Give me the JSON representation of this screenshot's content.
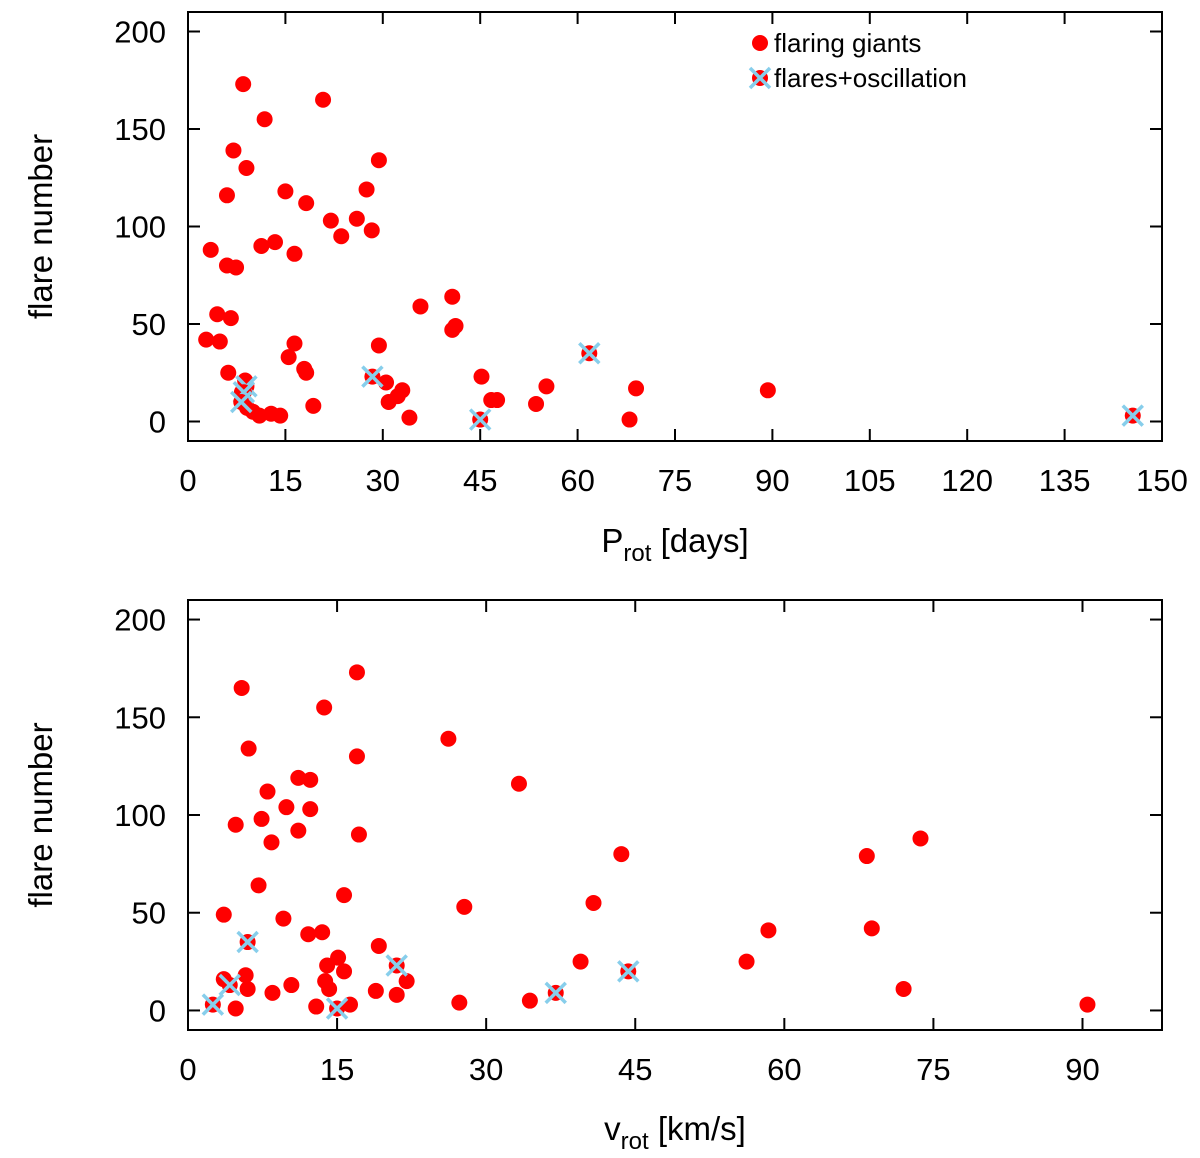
{
  "colors": {
    "marker": "#ff0000",
    "oscillation_marker": "#87ceeb",
    "axis": "#000000"
  },
  "chart_data": [
    {
      "type": "scatter",
      "xlabel": {
        "main": "P",
        "sub": "rot",
        "rest": " [days]"
      },
      "ylabel": "flare number",
      "xlim": [
        0,
        150
      ],
      "ylim": [
        -10,
        210
      ],
      "xticks": [
        0,
        15,
        30,
        45,
        60,
        75,
        90,
        105,
        120,
        135,
        150
      ],
      "yticks": [
        0,
        50,
        100,
        150,
        200
      ],
      "grid": false,
      "legend": {
        "placement": "top-right",
        "entries": [
          "flaring giants",
          "flares+oscillation"
        ]
      },
      "series": [
        {
          "name": "flaring giants",
          "marker": "filled-circle",
          "points": [
            [
              8.5,
              173
            ],
            [
              20.8,
              165
            ],
            [
              11.8,
              155
            ],
            [
              7.0,
              139
            ],
            [
              29.4,
              134
            ],
            [
              9.0,
              130
            ],
            [
              27.5,
              119
            ],
            [
              15.0,
              118
            ],
            [
              6.0,
              116
            ],
            [
              18.2,
              112
            ],
            [
              26.0,
              104
            ],
            [
              22.0,
              103
            ],
            [
              28.3,
              98
            ],
            [
              23.6,
              95
            ],
            [
              13.4,
              92
            ],
            [
              11.3,
              90
            ],
            [
              3.5,
              88
            ],
            [
              16.4,
              86
            ],
            [
              6.0,
              80
            ],
            [
              7.4,
              79
            ],
            [
              40.7,
              64
            ],
            [
              35.8,
              59
            ],
            [
              4.5,
              55
            ],
            [
              6.6,
              53
            ],
            [
              41.2,
              49
            ],
            [
              40.7,
              47
            ],
            [
              2.8,
              42
            ],
            [
              4.9,
              41
            ],
            [
              16.4,
              40
            ],
            [
              29.4,
              39
            ],
            [
              15.5,
              33
            ],
            [
              17.9,
              27
            ],
            [
              18.2,
              25
            ],
            [
              6.2,
              25
            ],
            [
              45.2,
              23
            ],
            [
              30.5,
              20
            ],
            [
              8.8,
              21
            ],
            [
              55.2,
              18
            ],
            [
              69.0,
              17
            ],
            [
              89.3,
              16
            ],
            [
              33.0,
              16
            ],
            [
              8.3,
              15
            ],
            [
              32.3,
              13
            ],
            [
              46.7,
              11
            ],
            [
              47.6,
              11
            ],
            [
              30.9,
              10
            ],
            [
              53.6,
              9
            ],
            [
              19.3,
              8
            ],
            [
              9.1,
              7
            ],
            [
              10.0,
              5
            ],
            [
              12.8,
              4
            ],
            [
              11.0,
              3
            ],
            [
              14.2,
              3
            ],
            [
              34.1,
              2
            ],
            [
              68.0,
              1
            ]
          ]
        },
        {
          "name": "flares+oscillation",
          "marker": "filled-circle-with-cross",
          "points": [
            [
              61.8,
              35
            ],
            [
              28.4,
              23
            ],
            [
              9.0,
              18
            ],
            [
              8.6,
              15
            ],
            [
              8.2,
              10
            ],
            [
              45.0,
              1
            ],
            [
              145.5,
              3
            ]
          ]
        }
      ]
    },
    {
      "type": "scatter",
      "xlabel": {
        "main": "v",
        "sub": "rot",
        "rest": " [km/s]"
      },
      "ylabel": "flare number",
      "xlim": [
        0,
        98
      ],
      "ylim": [
        -10,
        210
      ],
      "xticks": [
        0,
        15,
        30,
        45,
        60,
        75,
        90
      ],
      "yticks": [
        0,
        50,
        100,
        150,
        200
      ],
      "grid": false,
      "legend": null,
      "series": [
        {
          "name": "flaring giants",
          "marker": "filled-circle",
          "points": [
            [
              17.0,
              173
            ],
            [
              5.4,
              165
            ],
            [
              13.7,
              155
            ],
            [
              26.2,
              139
            ],
            [
              6.1,
              134
            ],
            [
              17.0,
              130
            ],
            [
              11.1,
              119
            ],
            [
              12.3,
              118
            ],
            [
              33.3,
              116
            ],
            [
              8.0,
              112
            ],
            [
              9.9,
              104
            ],
            [
              12.3,
              103
            ],
            [
              7.4,
              98
            ],
            [
              4.8,
              95
            ],
            [
              11.1,
              92
            ],
            [
              17.2,
              90
            ],
            [
              73.7,
              88
            ],
            [
              8.4,
              86
            ],
            [
              43.6,
              80
            ],
            [
              68.3,
              79
            ],
            [
              7.1,
              64
            ],
            [
              15.7,
              59
            ],
            [
              40.8,
              55
            ],
            [
              27.8,
              53
            ],
            [
              3.6,
              49
            ],
            [
              9.6,
              47
            ],
            [
              58.4,
              41
            ],
            [
              68.8,
              42
            ],
            [
              13.5,
              40
            ],
            [
              12.1,
              39
            ],
            [
              19.2,
              33
            ],
            [
              15.1,
              27
            ],
            [
              56.2,
              25
            ],
            [
              39.5,
              25
            ],
            [
              14.0,
              23
            ],
            [
              15.7,
              20
            ],
            [
              5.8,
              18
            ],
            [
              22.0,
              15
            ],
            [
              3.6,
              16
            ],
            [
              13.8,
              15
            ],
            [
              6.0,
              11
            ],
            [
              14.2,
              11
            ],
            [
              72.0,
              11
            ],
            [
              21.0,
              8
            ],
            [
              8.5,
              9
            ],
            [
              18.9,
              10
            ],
            [
              10.4,
              13
            ],
            [
              34.4,
              5
            ],
            [
              27.3,
              4
            ],
            [
              16.3,
              3
            ],
            [
              90.5,
              3
            ],
            [
              12.9,
              2
            ],
            [
              4.8,
              1
            ]
          ]
        },
        {
          "name": "flares+oscillation",
          "marker": "filled-circle-with-cross",
          "points": [
            [
              6.0,
              35
            ],
            [
              21.0,
              23
            ],
            [
              44.3,
              20
            ],
            [
              37.0,
              9
            ],
            [
              4.2,
              13
            ],
            [
              2.5,
              3
            ],
            [
              15.0,
              1
            ]
          ]
        }
      ]
    }
  ]
}
